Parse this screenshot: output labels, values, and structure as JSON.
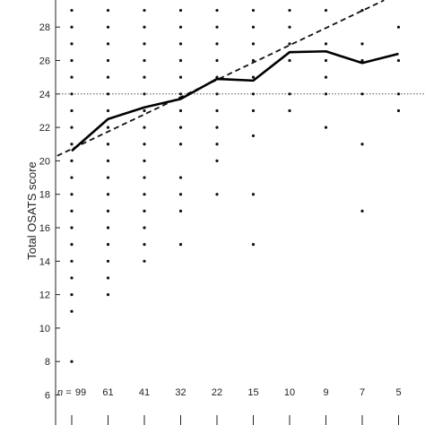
{
  "chart_data": {
    "type": "scatter",
    "title": "",
    "xlabel": "",
    "ylabel": "Total OSATS score",
    "ylim": [
      6,
      29.5
    ],
    "yticks": [
      6,
      8,
      10,
      12,
      14,
      16,
      18,
      20,
      22,
      24,
      26,
      28
    ],
    "x_positions": [
      1,
      2,
      3,
      4,
      5,
      6,
      7,
      8,
      9,
      10
    ],
    "n_prefix": "n =",
    "n_values": [
      "99",
      "61",
      "41",
      "32",
      "22",
      "15",
      "10",
      "9",
      "7",
      "5"
    ],
    "reference_line": {
      "y": 24,
      "style": "dotted"
    },
    "trend_line": {
      "style": "dashed",
      "x": [
        0.6,
        9.6
      ],
      "y": [
        20.3,
        29.6
      ]
    },
    "mean_line": {
      "style": "solid",
      "x": [
        1,
        2,
        3,
        4,
        5,
        6,
        7,
        8,
        9,
        10
      ],
      "y": [
        20.6,
        22.5,
        23.2,
        23.7,
        24.9,
        24.8,
        26.5,
        26.55,
        25.85,
        26.4
      ]
    },
    "scatter_points": [
      {
        "x": 1,
        "values": [
          8,
          11,
          12,
          13,
          14,
          15,
          16,
          17,
          18,
          19,
          20,
          21,
          22,
          23,
          24,
          25,
          26,
          27,
          28,
          29
        ]
      },
      {
        "x": 2,
        "values": [
          12,
          13,
          14,
          15,
          16,
          17,
          18,
          19,
          20,
          21,
          22,
          23,
          24,
          25,
          26,
          27,
          28,
          29
        ]
      },
      {
        "x": 3,
        "values": [
          14,
          15,
          16,
          17,
          18,
          19,
          20,
          21,
          22,
          23,
          24,
          25,
          26,
          27,
          28,
          29
        ]
      },
      {
        "x": 4,
        "values": [
          15,
          17,
          18,
          19,
          21,
          22,
          23,
          24,
          25,
          26,
          27,
          28,
          29
        ]
      },
      {
        "x": 5,
        "values": [
          18,
          20,
          21,
          22,
          23,
          24,
          25,
          26,
          27,
          28,
          29
        ]
      },
      {
        "x": 6,
        "values": [
          15,
          18,
          21.5,
          23,
          24,
          25,
          26,
          27,
          28,
          29
        ]
      },
      {
        "x": 7,
        "values": [
          23,
          24,
          26,
          27,
          28,
          29
        ]
      },
      {
        "x": 8,
        "values": [
          22,
          24,
          25,
          26,
          27,
          29
        ]
      },
      {
        "x": 9,
        "values": [
          17,
          21,
          24,
          26,
          27,
          29
        ]
      },
      {
        "x": 10,
        "values": [
          23,
          24,
          26,
          28
        ]
      }
    ]
  }
}
